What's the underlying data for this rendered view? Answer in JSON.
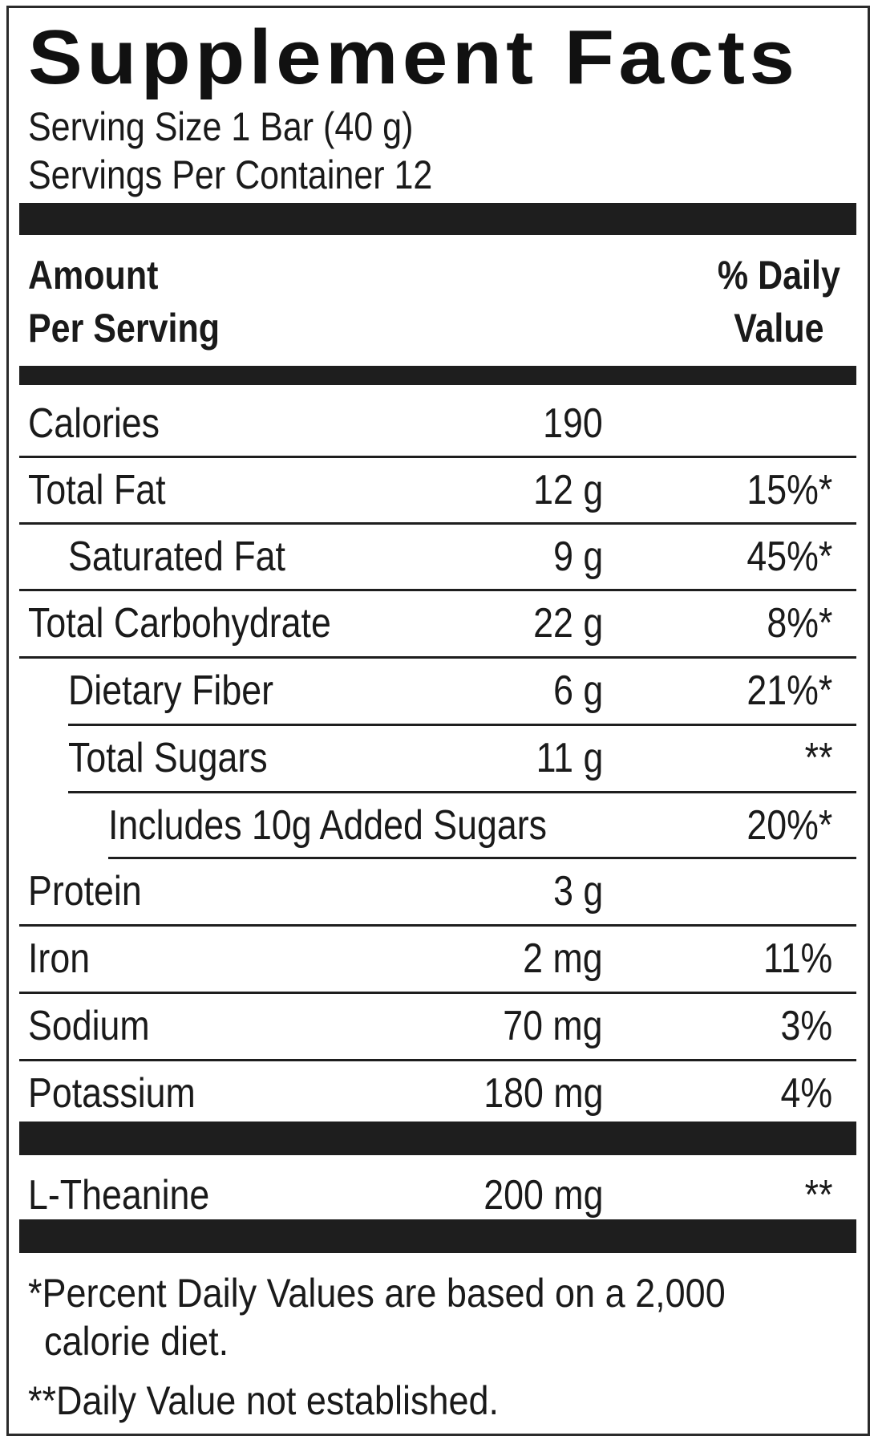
{
  "title": "Supplement Facts",
  "serving_size": "Serving Size 1 Bar (40 g)",
  "servings_per_container": "Servings Per Container 12",
  "header": {
    "amount_line1": "Amount",
    "amount_line2": "Per Serving",
    "dv_line1": "% Daily",
    "dv_line2": "Value"
  },
  "nutrients": [
    {
      "name": "Calories",
      "amount": "190",
      "dv": ""
    },
    {
      "name": "Total Fat",
      "amount": "12 g",
      "dv": "15%*"
    },
    {
      "name": "Saturated Fat",
      "amount": "9 g",
      "dv": "45%*"
    },
    {
      "name": "Total Carbohydrate",
      "amount": "22 g",
      "dv": "8%*"
    },
    {
      "name": "Dietary Fiber",
      "amount": "6 g",
      "dv": "21%*"
    },
    {
      "name": "Total Sugars",
      "amount": "11 g",
      "dv": "**"
    },
    {
      "name": "Includes 10g Added Sugars",
      "amount": "",
      "dv": "20%*"
    },
    {
      "name": "Protein",
      "amount": "3 g",
      "dv": ""
    },
    {
      "name": "Iron",
      "amount": "2 mg",
      "dv": "11%"
    },
    {
      "name": "Sodium",
      "amount": "70 mg",
      "dv": "3%"
    },
    {
      "name": "Potassium",
      "amount": "180 mg",
      "dv": "4%"
    }
  ],
  "other_ingredients": [
    {
      "name": "L-Theanine",
      "amount": "200 mg",
      "dv": "**"
    }
  ],
  "footnotes": {
    "percent_line1": "*Percent Daily Values are based on a 2,000",
    "percent_line2": "calorie diet.",
    "not_established": "**Daily Value not established."
  }
}
